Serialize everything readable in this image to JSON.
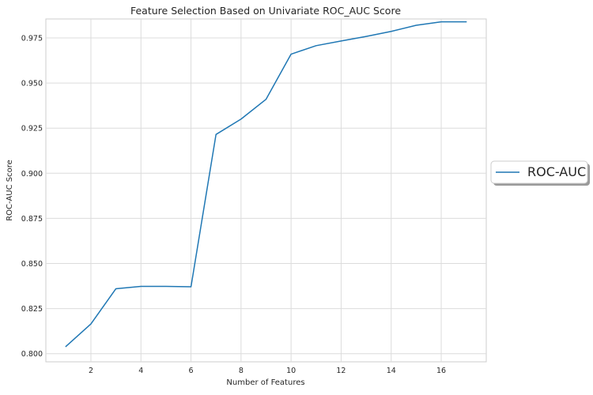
{
  "chart_data": {
    "type": "line",
    "title": "Feature Selection Based on Univariate ROC_AUC Score",
    "xlabel": "Number of Features",
    "ylabel": "ROC-AUC Score",
    "xlim": [
      0.2,
      17.8
    ],
    "ylim": [
      0.7955,
      0.9855
    ],
    "x_ticks": [
      2,
      4,
      6,
      8,
      10,
      12,
      14,
      16
    ],
    "y_ticks": [
      0.8,
      0.825,
      0.85,
      0.875,
      0.9,
      0.925,
      0.95,
      0.975
    ],
    "y_tick_labels": [
      "0.800",
      "0.825",
      "0.850",
      "0.875",
      "0.900",
      "0.925",
      "0.950",
      "0.975"
    ],
    "grid": true,
    "legend": {
      "placement": "center-right-outside",
      "entries": [
        "ROC-AUC"
      ]
    },
    "series": [
      {
        "name": "ROC-AUC",
        "color": "#1f77b4",
        "x": [
          1,
          2,
          3,
          4,
          5,
          6,
          7,
          8,
          9,
          10,
          11,
          12,
          13,
          14,
          15,
          16,
          17
        ],
        "y": [
          0.804,
          0.8165,
          0.836,
          0.8373,
          0.8373,
          0.8371,
          0.9215,
          0.93,
          0.941,
          0.966,
          0.9707,
          0.9733,
          0.9758,
          0.9786,
          0.982,
          0.9839,
          0.9839
        ]
      }
    ]
  }
}
